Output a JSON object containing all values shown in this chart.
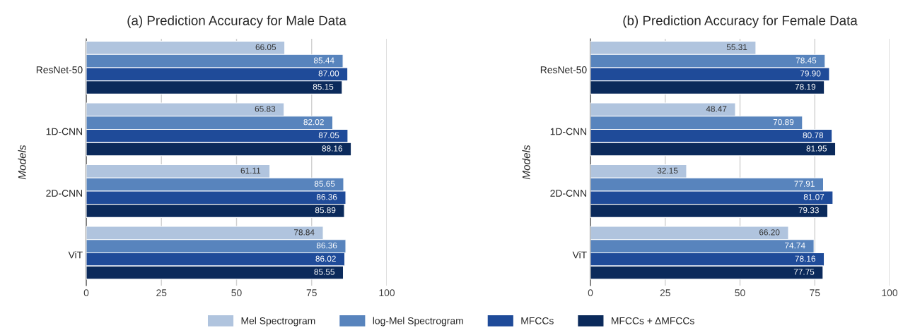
{
  "chart_data": [
    {
      "type": "bar",
      "orientation": "horizontal",
      "title": "(a) Prediction Accuracy for Male Data",
      "ylabel": "Models",
      "categories": [
        "ResNet-50",
        "1D-CNN",
        "2D-CNN",
        "ViT"
      ],
      "xlim": [
        0,
        100
      ],
      "xticks": [
        0,
        25,
        50,
        75,
        100
      ],
      "grid": "x",
      "legend": "bottom",
      "series": [
        {
          "name": "Mel Spectrogram",
          "color": "#b0c4de",
          "values": [
            66.05,
            65.83,
            61.11,
            78.84
          ],
          "value_labels": [
            "66.05",
            "65.83",
            "61.11",
            "78.84"
          ]
        },
        {
          "name": "log-Mel Spectrogram",
          "color": "#5884bd",
          "values": [
            85.44,
            82.02,
            85.65,
            86.36
          ],
          "value_labels": [
            "85.44",
            "82.02",
            "85.65",
            "86.36"
          ]
        },
        {
          "name": "MFCCs",
          "color": "#1f4b99",
          "values": [
            87.0,
            87.05,
            86.36,
            86.02
          ],
          "value_labels": [
            "87.00",
            "87.05",
            "86.36",
            "86.02"
          ]
        },
        {
          "name": "MFCCs + ΔMFCCs",
          "color": "#0b2a5b",
          "values": [
            85.15,
            88.16,
            85.89,
            85.55
          ],
          "value_labels": [
            "85.15",
            "88.16",
            "85.89",
            "85.55"
          ]
        }
      ]
    },
    {
      "type": "bar",
      "orientation": "horizontal",
      "title": "(b) Prediction Accuracy for Female Data",
      "ylabel": "Models",
      "categories": [
        "ResNet-50",
        "1D-CNN",
        "2D-CNN",
        "ViT"
      ],
      "xlim": [
        0,
        100
      ],
      "xticks": [
        0,
        25,
        50,
        75,
        100
      ],
      "grid": "x",
      "series": [
        {
          "name": "Mel Spectrogram",
          "color": "#b0c4de",
          "values": [
            55.31,
            48.47,
            32.15,
            66.2
          ],
          "value_labels": [
            "55.31",
            "48.47",
            "32.15",
            "66.20"
          ]
        },
        {
          "name": "log-Mel Spectrogram",
          "color": "#5884bd",
          "values": [
            78.45,
            70.89,
            77.91,
            74.74
          ],
          "value_labels": [
            "78.45",
            "70.89",
            "77.91",
            "74.74"
          ]
        },
        {
          "name": "MFCCs",
          "color": "#1f4b99",
          "values": [
            79.9,
            80.78,
            81.07,
            78.16
          ],
          "value_labels": [
            "79.90",
            "80.78",
            "81.07",
            "78.16"
          ]
        },
        {
          "name": "MFCCs + ΔMFCCs",
          "color": "#0b2a5b",
          "values": [
            78.19,
            81.95,
            79.33,
            77.75
          ],
          "value_labels": [
            "78.19",
            "81.95",
            "79.33",
            "77.75"
          ]
        }
      ]
    }
  ]
}
